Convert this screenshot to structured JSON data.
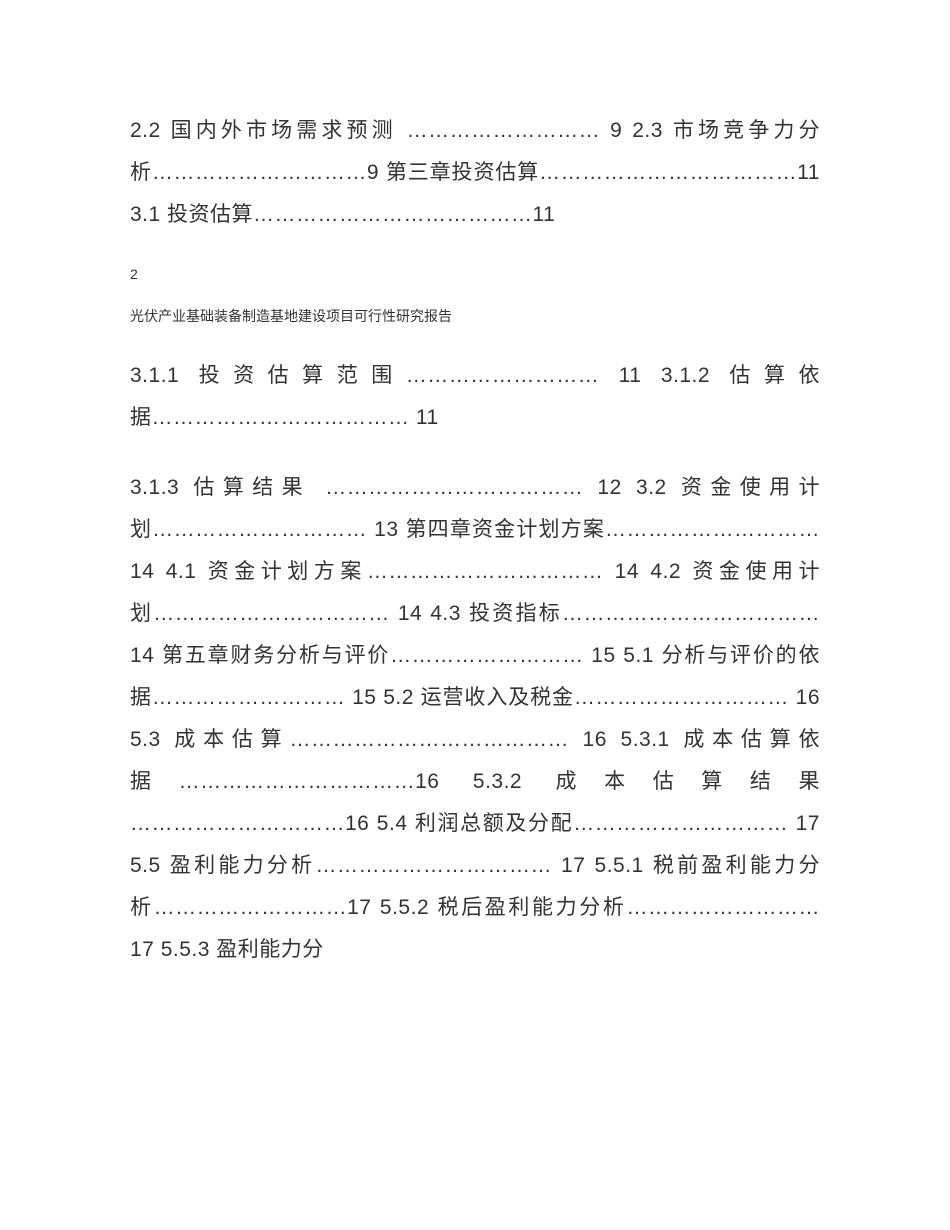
{
  "document": {
    "type": "table-of-contents",
    "background_color": "#ffffff",
    "text_color": "#333333",
    "paragraphs": [
      {
        "class": "para-large",
        "text": "2.2 国内外市场需求预测 ……………………… 9 2.3 市场竞争力分析…………………………9 第三章投资估算………………………………11 3.1 投资估算…………………………………11"
      },
      {
        "class": "para-small",
        "text": "2"
      },
      {
        "class": "para-medium",
        "text": "光伏产业基础装备制造基地建设项目可行性研究报告"
      },
      {
        "class": "para-large",
        "text": "3.1.1 投资估算范围……………………… 11 3.1.2 估算依据……………………………… 11"
      },
      {
        "class": "para-large",
        "text": "3.1.3 估算结果 ……………………………… 12 3.2 资金使用计划………………………… 13 第四章资金计划方案………………………… 14 4.1 资金计划方案…………………………… 14 4.2 资金使用计划…………………………… 14 4.3 投资指标……………………………… 14 第五章财务分析与评价……………………… 15 5.1 分析与评价的依据……………………… 15 5.2 运营收入及税金………………………… 16 5.3 成本估算………………………………… 16 5.3.1 成本估算依据……………………………16 5.3.2 成本估算结果 …………………………16 5.4 利润总额及分配………………………… 17 5.5 盈利能力分析…………………………… 17 5.5.1 税前盈利能力分析………………………17 5.5.2 税后盈利能力分析………………………17 5.5.3 盈利能力分"
      }
    ]
  }
}
